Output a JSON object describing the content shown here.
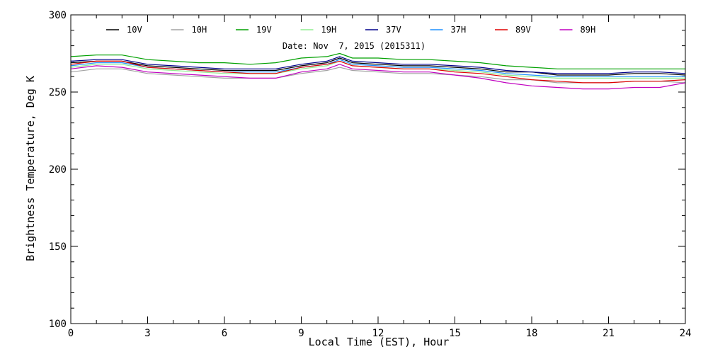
{
  "chart_data": {
    "type": "line",
    "annotation": "Date: Nov  7, 2015 (2015311)",
    "xlabel": "Local Time (EST), Hour",
    "ylabel": "Brightness Temperature, Deg K",
    "xlim": [
      0,
      24
    ],
    "ylim": [
      100,
      300
    ],
    "x_ticks": [
      0,
      3,
      6,
      9,
      12,
      15,
      18,
      21,
      24
    ],
    "y_ticks": [
      100,
      150,
      200,
      250,
      300
    ],
    "grid": false,
    "legend_position": "top, single row",
    "x": [
      0,
      1,
      2,
      3,
      4,
      5,
      6,
      7,
      8,
      9,
      10,
      10.5,
      11,
      12,
      13,
      14,
      15,
      16,
      17,
      18,
      19,
      20,
      21,
      22,
      23,
      24
    ],
    "series": [
      {
        "name": "10V",
        "color": "#000000",
        "values": [
          269,
          270,
          270,
          267,
          266,
          265,
          264,
          264,
          264,
          267,
          269,
          272,
          269,
          268,
          267,
          267,
          266,
          265,
          263,
          263,
          261,
          261,
          261,
          262,
          262,
          261
        ]
      },
      {
        "name": "10H",
        "color": "#a3a3a3",
        "values": [
          263,
          265,
          265,
          262,
          261,
          260,
          259,
          259,
          259,
          262,
          264,
          266,
          264,
          263,
          262,
          262,
          261,
          260,
          258,
          258,
          256,
          256,
          256,
          257,
          257,
          256
        ]
      },
      {
        "name": "19V",
        "color": "#00a000",
        "values": [
          273,
          274,
          274,
          271,
          270,
          269,
          269,
          268,
          269,
          272,
          273,
          275,
          272,
          272,
          271,
          271,
          270,
          269,
          267,
          266,
          265,
          265,
          265,
          265,
          265,
          265
        ]
      },
      {
        "name": "19H",
        "color": "#90ee90",
        "values": [
          266,
          268,
          268,
          265,
          264,
          263,
          262,
          262,
          262,
          265,
          267,
          270,
          267,
          266,
          265,
          265,
          264,
          263,
          261,
          260,
          259,
          259,
          259,
          259,
          259,
          259
        ]
      },
      {
        "name": "37V",
        "color": "#00008b",
        "values": [
          270,
          271,
          271,
          268,
          267,
          266,
          265,
          265,
          265,
          268,
          270,
          273,
          270,
          269,
          268,
          268,
          267,
          266,
          264,
          263,
          262,
          262,
          262,
          263,
          263,
          262
        ]
      },
      {
        "name": "37H",
        "color": "#1e90ff",
        "values": [
          267,
          269,
          269,
          266,
          265,
          264,
          263,
          263,
          263,
          266,
          268,
          271,
          268,
          267,
          266,
          266,
          265,
          264,
          262,
          261,
          260,
          260,
          260,
          260,
          260,
          260
        ]
      },
      {
        "name": "89V",
        "color": "#e00000",
        "values": [
          268,
          270,
          270,
          266,
          265,
          264,
          263,
          262,
          262,
          266,
          268,
          270,
          267,
          266,
          265,
          265,
          263,
          262,
          260,
          258,
          257,
          256,
          256,
          257,
          257,
          258
        ]
      },
      {
        "name": "89H",
        "color": "#c000c0",
        "values": [
          265,
          267,
          266,
          263,
          262,
          261,
          260,
          259,
          259,
          263,
          265,
          268,
          265,
          264,
          263,
          263,
          261,
          259,
          256,
          254,
          253,
          252,
          252,
          253,
          253,
          256
        ]
      }
    ]
  }
}
